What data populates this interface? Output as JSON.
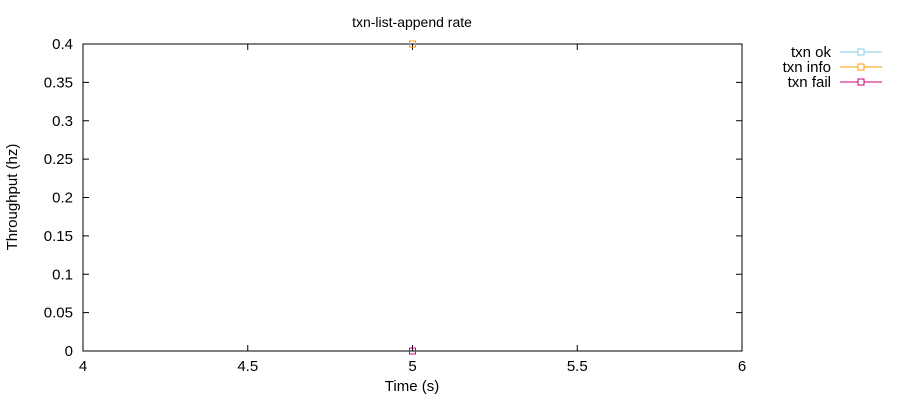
{
  "chart_data": {
    "type": "scatter",
    "title": "txn-list-append rate",
    "xlabel": "Time (s)",
    "ylabel": "Throughput (hz)",
    "xlim": [
      4,
      6
    ],
    "ylim": [
      0,
      0.4
    ],
    "xticks": [
      "4",
      "4.5",
      "5",
      "5.5",
      "6"
    ],
    "yticks": [
      "0",
      "0.05",
      "0.1",
      "0.15",
      "0.2",
      "0.25",
      "0.3",
      "0.35",
      "0.4"
    ],
    "legend_position": "outside-top-right",
    "grid": false,
    "series": [
      {
        "name": "txn ok",
        "color": "#87ceeb",
        "marker": "square-open",
        "points": []
      },
      {
        "name": "txn info",
        "color": "#ff9900",
        "marker": "square-open",
        "points": [
          {
            "x": 5,
            "y": 0.4
          }
        ]
      },
      {
        "name": "txn fail",
        "color": "#cc0077",
        "marker": "square-open",
        "points": [
          {
            "x": 5,
            "y": 0
          }
        ]
      }
    ]
  }
}
